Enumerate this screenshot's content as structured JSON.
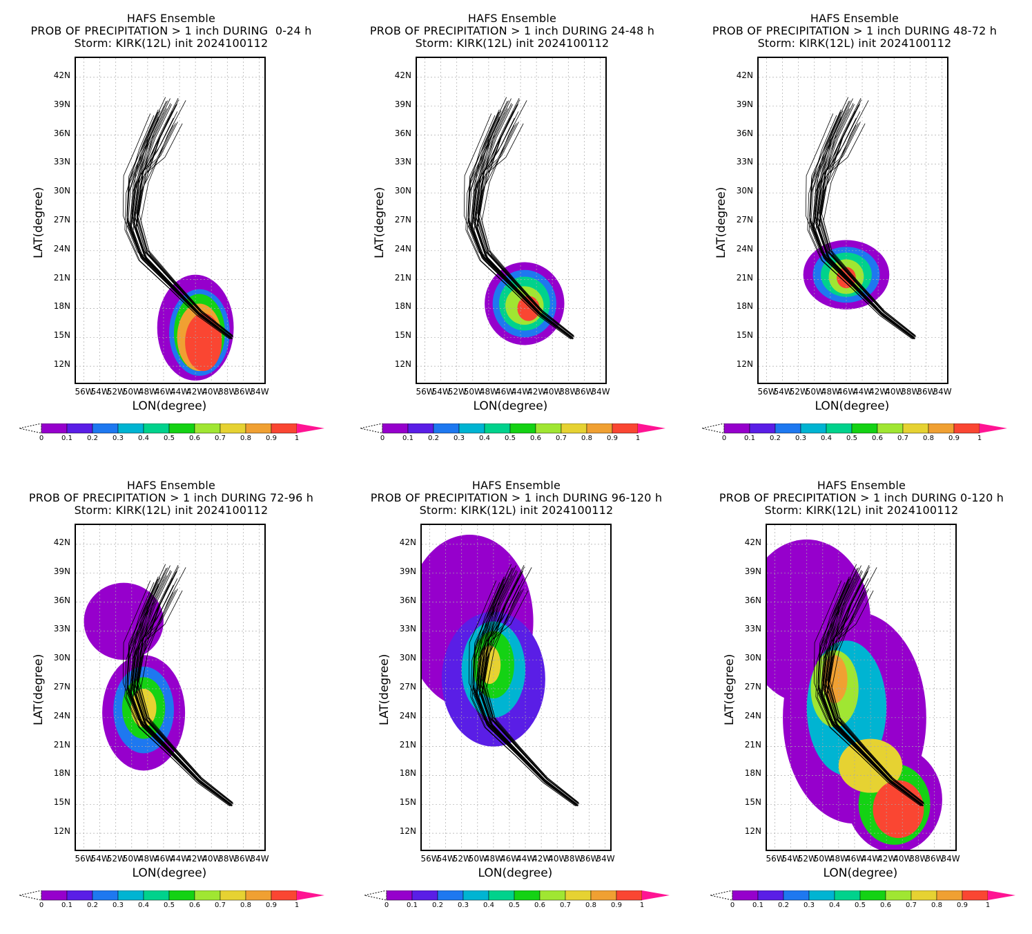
{
  "figure": {
    "common_title": "HAFS Ensemble",
    "storm_line": "Storm: KIRK(12L) init 2024100112",
    "xlabel": "LON(degree)",
    "ylabel": "LAT(degree)",
    "lat_ticks": [
      "42N",
      "39N",
      "36N",
      "33N",
      "30N",
      "27N",
      "24N",
      "21N",
      "18N",
      "15N",
      "12N"
    ],
    "lon_ticks": [
      "56W",
      "54W",
      "52W",
      "50W",
      "48W",
      "46W",
      "44W",
      "42W",
      "40W",
      "38W",
      "36W",
      "34W"
    ],
    "colorbar_labels": [
      "0",
      "0.1",
      "0.2",
      "0.3",
      "0.4",
      "0.5",
      "0.6",
      "0.7",
      "0.8",
      "0.9",
      "1"
    ],
    "colorbar_colors": [
      "#9600cc",
      "#5a1ee6",
      "#1e78f0",
      "#00b4d2",
      "#00d28c",
      "#14d214",
      "#a0e632",
      "#e6d232",
      "#f0a032",
      "#fa4632",
      "#ff1493"
    ]
  },
  "panels": [
    {
      "subtitle": "PROB OF PRECIPITATION > 1 inch DURING  0-24 h"
    },
    {
      "subtitle": "PROB OF PRECIPITATION > 1 inch DURING 24-48 h"
    },
    {
      "subtitle": "PROB OF PRECIPITATION > 1 inch DURING 48-72 h"
    },
    {
      "subtitle": "PROB OF PRECIPITATION > 1 inch DURING 72-96 h"
    },
    {
      "subtitle": "PROB OF PRECIPITATION > 1 inch DURING 96-120 h"
    },
    {
      "subtitle": "PROB OF PRECIPITATION > 1 inch DURING 0-120 h"
    }
  ],
  "chart_data": {
    "type": "heatmap",
    "variable": "probability of precipitation > 1 inch",
    "lat_range": [
      "10N",
      "44N"
    ],
    "lon_range": [
      "57W",
      "33W"
    ],
    "colorbar_range": [
      0,
      1
    ],
    "track_count_approx": 30
  }
}
